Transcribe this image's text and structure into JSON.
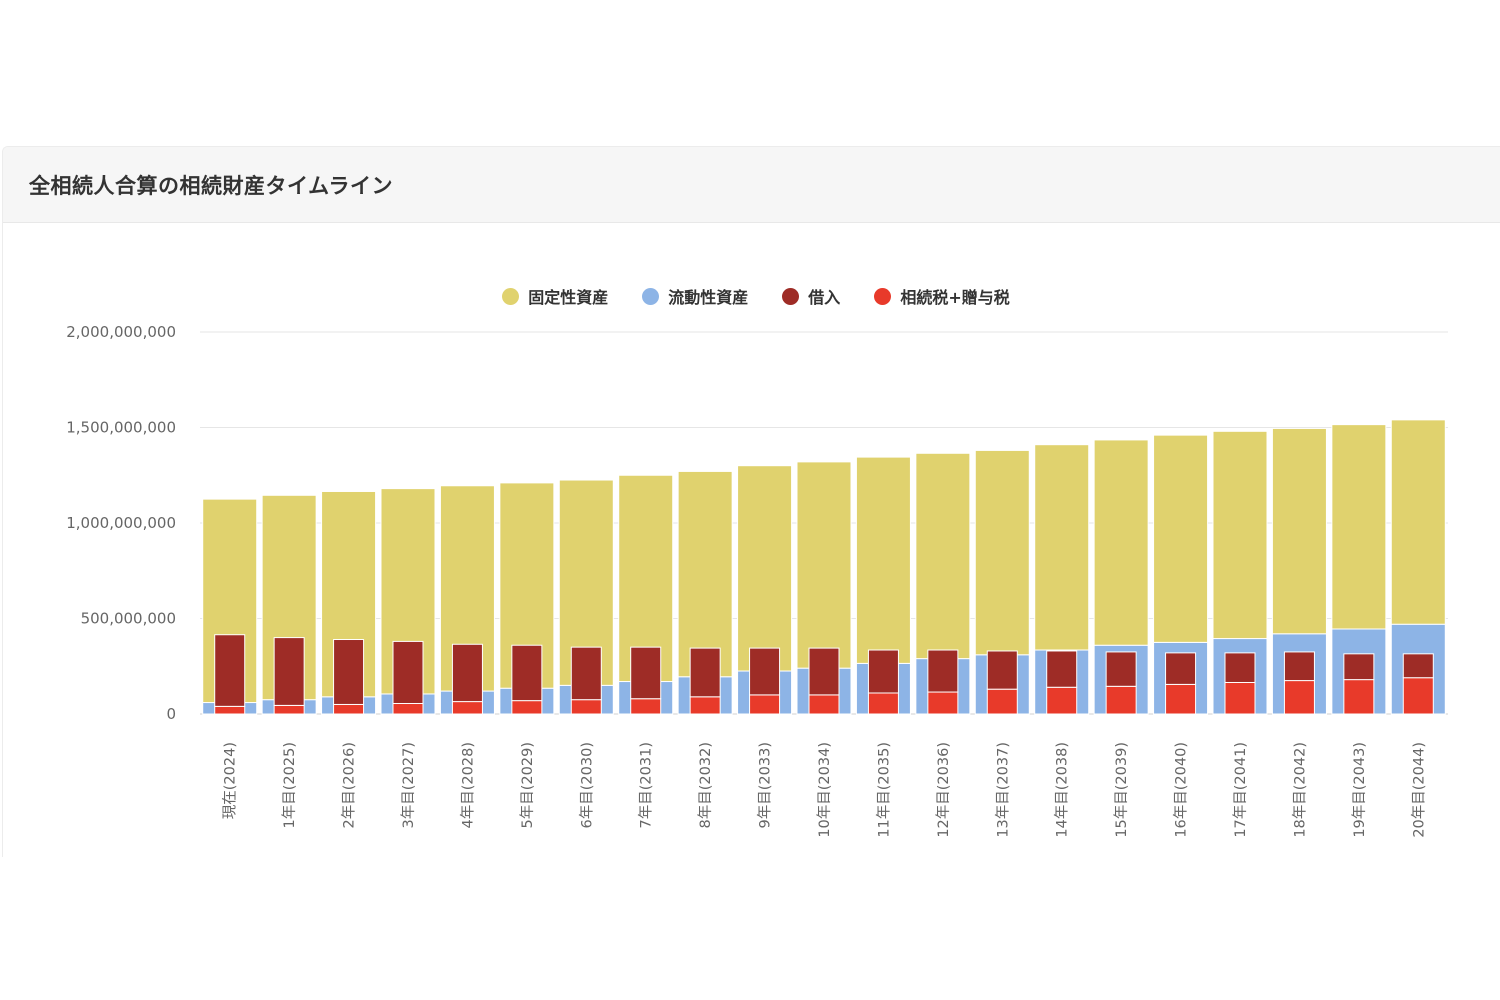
{
  "card": {
    "title": "全相続人合算の相続財産タイムライン"
  },
  "chart_data": {
    "type": "bar",
    "title": "全相続人合算の相続財産タイムライン",
    "legend_position": "top",
    "grid": true,
    "ylim": [
      0,
      2000000000
    ],
    "yticks": [
      "2,000,000,000",
      "1,500,000,000",
      "1,000,000,000",
      "500,000,000",
      "0"
    ],
    "yticks_values": [
      2000000000,
      1500000000,
      1000000000,
      500000000,
      0
    ],
    "categories": [
      "現在(2024)",
      "1年目(2025)",
      "2年目(2026)",
      "3年目(2027)",
      "4年目(2028)",
      "5年目(2029)",
      "6年目(2030)",
      "7年目(2031)",
      "8年目(2032)",
      "9年目(2033)",
      "10年目(2034)",
      "11年目(2035)",
      "12年目(2036)",
      "13年目(2037)",
      "14年目(2038)",
      "15年目(2039)",
      "16年目(2040)",
      "17年目(2041)",
      "18年目(2042)",
      "19年目(2043)",
      "20年目(2044)"
    ],
    "series": [
      {
        "name": "固定性資産",
        "color": "#e0d26e",
        "stack": "assets",
        "values": [
          1065000000,
          1070000000,
          1075000000,
          1075000000,
          1075000000,
          1075000000,
          1075000000,
          1080000000,
          1075000000,
          1075000000,
          1080000000,
          1080000000,
          1075000000,
          1070000000,
          1075000000,
          1075000000,
          1085000000,
          1085000000,
          1075000000,
          1070000000,
          1070000000
        ]
      },
      {
        "name": "流動性資産",
        "color": "#8db4e6",
        "stack": "assets",
        "values": [
          60000000,
          75000000,
          90000000,
          105000000,
          120000000,
          135000000,
          150000000,
          170000000,
          195000000,
          225000000,
          240000000,
          265000000,
          290000000,
          310000000,
          335000000,
          360000000,
          375000000,
          395000000,
          420000000,
          445000000,
          470000000
        ]
      },
      {
        "name": "借入",
        "color": "#9e2c26",
        "stack": "liabilities",
        "values": [
          375000000,
          355000000,
          340000000,
          325000000,
          300000000,
          290000000,
          275000000,
          270000000,
          255000000,
          245000000,
          245000000,
          225000000,
          220000000,
          200000000,
          190000000,
          180000000,
          165000000,
          155000000,
          150000000,
          135000000,
          125000000
        ]
      },
      {
        "name": "相続税+贈与税",
        "color": "#e83a2a",
        "stack": "liabilities",
        "values": [
          40000000,
          45000000,
          50000000,
          55000000,
          65000000,
          70000000,
          75000000,
          80000000,
          90000000,
          100000000,
          100000000,
          110000000,
          115000000,
          130000000,
          140000000,
          145000000,
          155000000,
          165000000,
          175000000,
          180000000,
          190000000
        ]
      }
    ]
  }
}
